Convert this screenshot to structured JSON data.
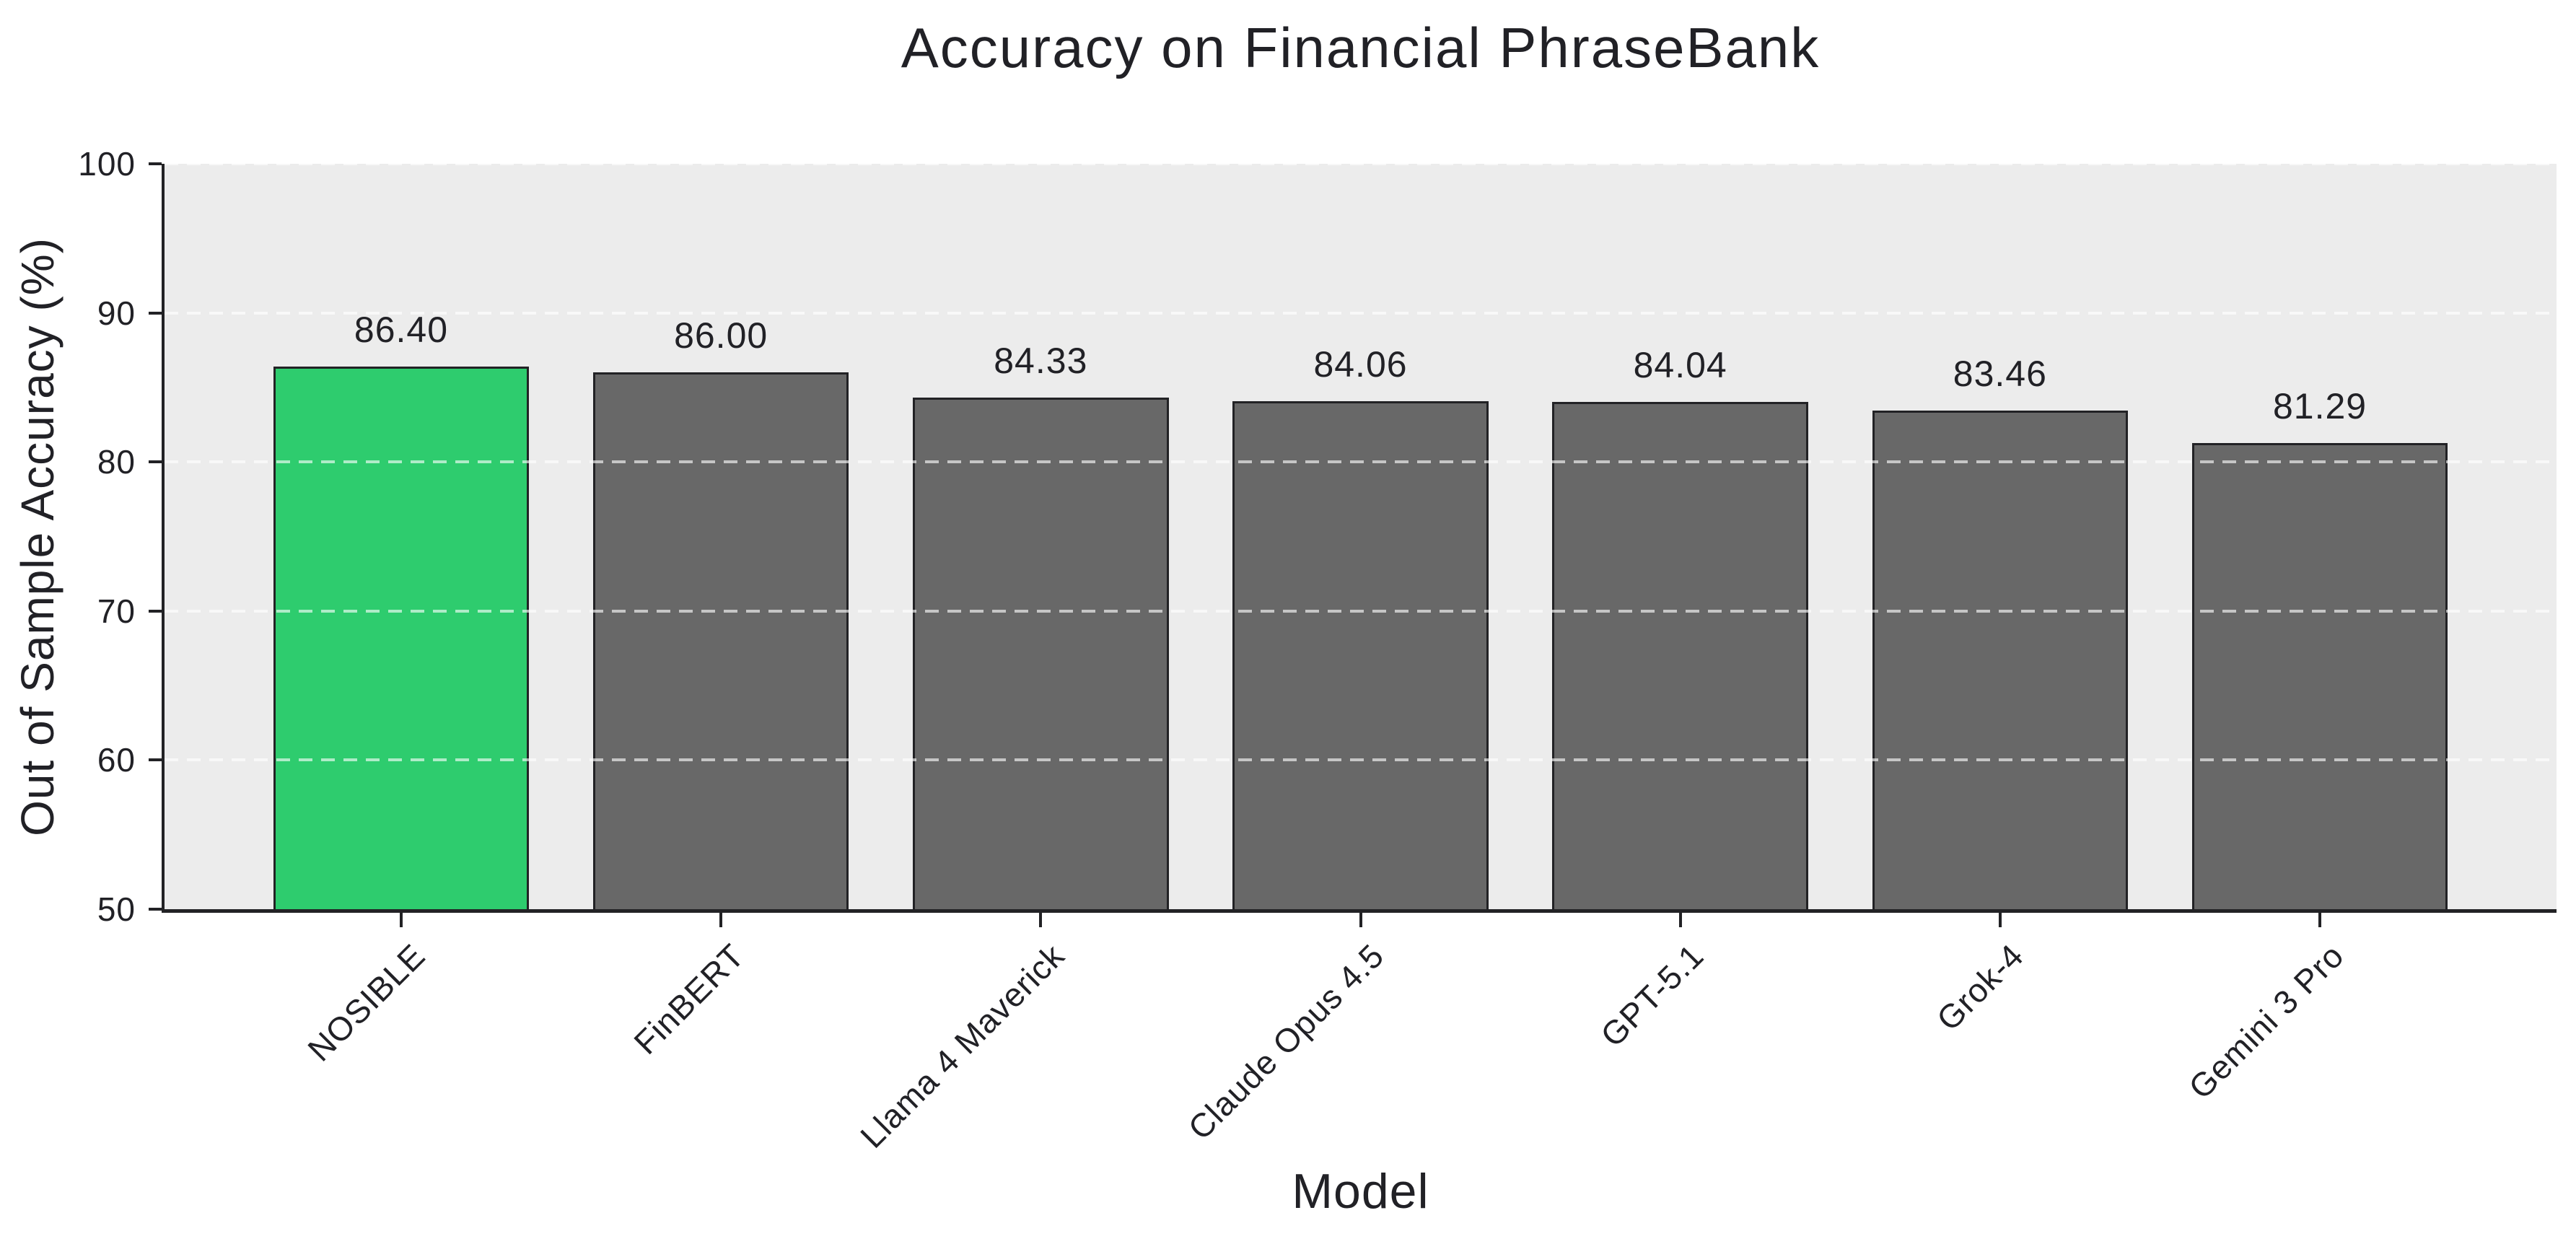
{
  "chart_data": {
    "type": "bar",
    "title": "Accuracy on Financial PhraseBank",
    "xlabel": "Model",
    "ylabel": "Out of Sample Accuracy (%)",
    "categories": [
      "NOSIBLE",
      "FinBERT",
      "Llama 4 Maverick",
      "Claude Opus 4.5",
      "GPT-5.1",
      "Grok-4",
      "Gemini 3 Pro"
    ],
    "values": [
      86.4,
      86.0,
      84.33,
      84.06,
      84.04,
      83.46,
      81.29
    ],
    "value_labels": [
      "86.40",
      "86.00",
      "84.33",
      "84.06",
      "84.04",
      "83.46",
      "81.29"
    ],
    "ylim": [
      50,
      100
    ],
    "yticks": [
      50,
      60,
      70,
      80,
      90,
      100
    ],
    "bar_width_fraction": 0.8,
    "highlight_index": 0,
    "grid": "horizontal dashed lines drawn over bars",
    "legend_position": "none",
    "colors": {
      "highlight_bar": "#2ECC6E",
      "default_bar": "#686868",
      "bar_border": "#222225",
      "plot_background": "#ECECEC",
      "figure_background": "#FFFFFF",
      "gridline": "rgba(255,255,255,0.62)",
      "text": "#212126"
    }
  }
}
